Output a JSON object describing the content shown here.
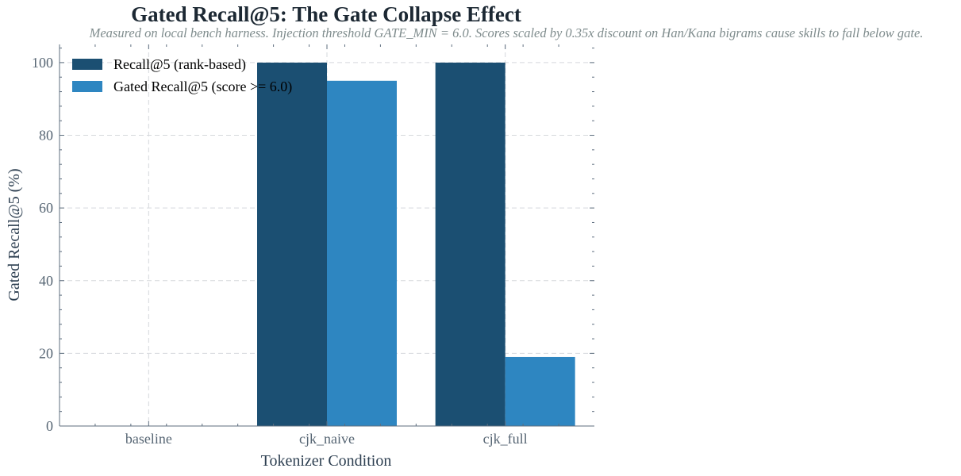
{
  "chart_data": {
    "type": "bar",
    "title": "Gated Recall@5: The Gate Collapse Effect",
    "subtitle": "Measured on local bench harness. Injection threshold GATE_MIN = 6.0. Scores scaled by 0.35x discount on Han/Kana bigrams cause skills to fall below gate.",
    "xlabel": "Tokenizer Condition",
    "ylabel": "Gated Recall@5 (%)",
    "ylim": [
      0,
      105
    ],
    "yticks": [
      0,
      20,
      40,
      60,
      80,
      100
    ],
    "categories": [
      "baseline",
      "cjk_naive",
      "cjk_full"
    ],
    "series": [
      {
        "name": "Recall@5 (rank-based)",
        "values": [
          0,
          100,
          100
        ],
        "color": "#1b4f72"
      },
      {
        "name": "Gated Recall@5 (score >= 6.0)",
        "values": [
          0,
          95,
          19
        ],
        "color": "#2e86c1"
      }
    ],
    "grid": true,
    "legend": "top-left"
  }
}
